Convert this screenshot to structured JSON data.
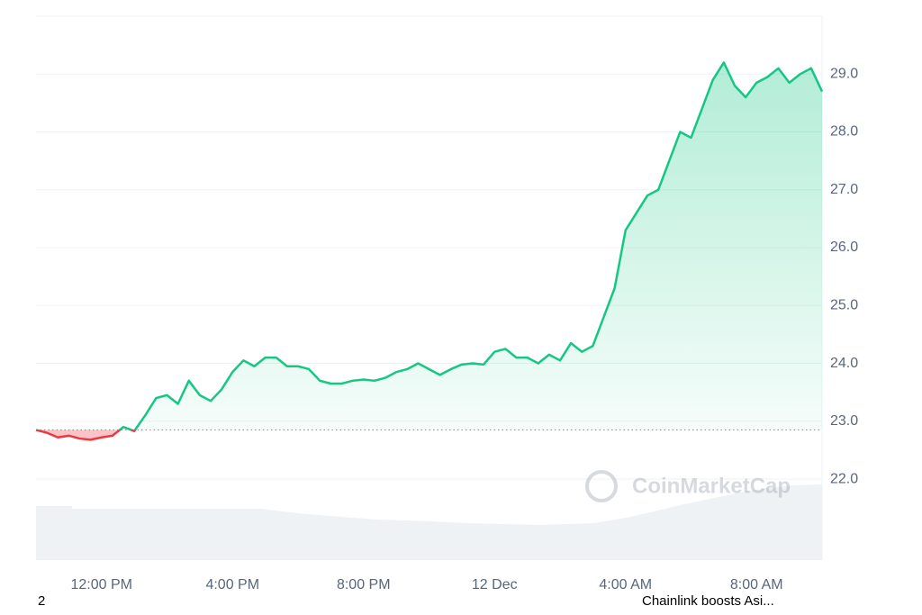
{
  "chart_data": {
    "type": "line",
    "categories": [
      null,
      null,
      null,
      null,
      null,
      null,
      "12:00 PM",
      null,
      null,
      null,
      null,
      null,
      null,
      null,
      null,
      null,
      null,
      null,
      "4:00 PM",
      null,
      null,
      null,
      null,
      null,
      null,
      null,
      null,
      null,
      null,
      null,
      "8:00 PM",
      null,
      null,
      null,
      null,
      null,
      null,
      null,
      null,
      null,
      null,
      null,
      "12 Dec",
      null,
      null,
      null,
      null,
      null,
      null,
      null,
      null,
      null,
      null,
      null,
      "4:00 AM",
      null,
      null,
      null,
      null,
      null,
      null,
      null,
      null,
      null,
      null,
      null,
      "8:00 AM",
      null,
      null,
      null,
      null,
      null,
      null
    ],
    "values": [
      22.85,
      22.8,
      22.72,
      22.75,
      22.7,
      22.68,
      22.72,
      22.75,
      22.9,
      22.83,
      23.1,
      23.4,
      23.45,
      23.3,
      23.7,
      23.45,
      23.35,
      23.55,
      23.85,
      24.05,
      23.95,
      24.1,
      24.1,
      23.95,
      23.95,
      23.9,
      23.7,
      23.65,
      23.65,
      23.7,
      23.72,
      23.7,
      23.75,
      23.85,
      23.9,
      24.0,
      23.9,
      23.8,
      23.9,
      23.98,
      24.0,
      23.98,
      24.2,
      24.25,
      24.1,
      24.1,
      24.0,
      24.15,
      24.05,
      24.35,
      24.2,
      24.3,
      24.8,
      25.3,
      26.3,
      26.6,
      26.9,
      27.0,
      27.5,
      28.0,
      27.9,
      28.4,
      28.9,
      29.2,
      28.8,
      28.6,
      28.85,
      28.95,
      29.1,
      28.85,
      29.0,
      29.1,
      28.7
    ],
    "baseline": 22.85,
    "color": "#16c784",
    "down_color": "#ea3943",
    "ylim": [
      20.6,
      30.0
    ],
    "yticks": [
      {
        "value": 22,
        "label": "22.0"
      },
      {
        "value": 23,
        "label": "23.0"
      },
      {
        "value": 24,
        "label": "24.0"
      },
      {
        "value": 25,
        "label": "25.0"
      },
      {
        "value": 26,
        "label": "26.0"
      },
      {
        "value": 27,
        "label": "27.0"
      },
      {
        "value": 28,
        "label": "28.0"
      },
      {
        "value": 29,
        "label": "29.0"
      }
    ],
    "grid": true,
    "watermark": "CoinMarketCap",
    "page_number": "2",
    "news": "Chainlink boosts Asi..."
  }
}
